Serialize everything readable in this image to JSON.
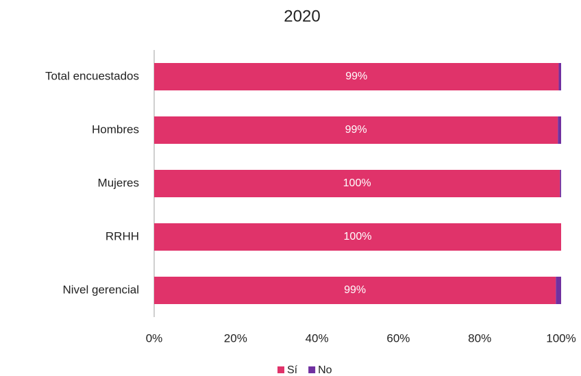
{
  "chart_data": {
    "type": "stacked-bar-horizontal",
    "title": "2020",
    "categories": [
      "Total encuestados",
      "Hombres",
      "Mujeres",
      "RRHH",
      "Nivel gerencial"
    ],
    "series": [
      {
        "name": "Sí",
        "color": "#e0336a",
        "values": [
          99.4,
          99.2,
          99.7,
          100,
          98.7
        ],
        "value_labels": [
          "99%",
          "99%",
          "100%",
          "100%",
          "99%"
        ]
      },
      {
        "name": "No",
        "color": "#7030a0",
        "values": [
          0.6,
          0.8,
          0.3,
          0,
          1.3
        ]
      }
    ],
    "xlim": [
      0,
      100
    ],
    "xticks": [
      {
        "value": 0,
        "label": "0%"
      },
      {
        "value": 20,
        "label": "20%"
      },
      {
        "value": 40,
        "label": "40%"
      },
      {
        "value": 60,
        "label": "60%"
      },
      {
        "value": 80,
        "label": "80%"
      },
      {
        "value": 100,
        "label": "100%"
      }
    ],
    "legend": "bottom"
  }
}
